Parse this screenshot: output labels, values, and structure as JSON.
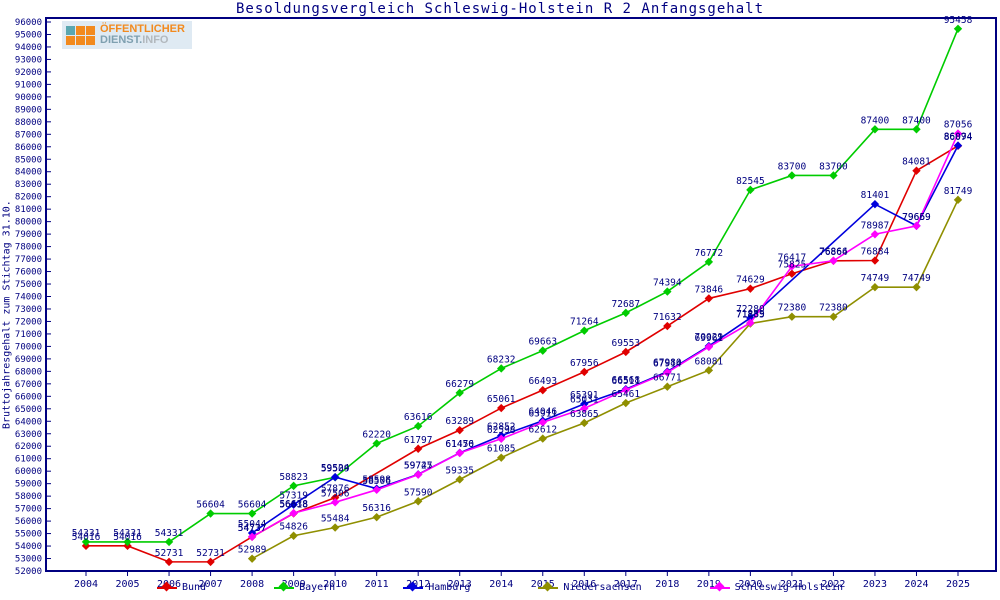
{
  "title": "Besoldungsvergleich Schleswig-Holstein R 2 Anfangsgehalt",
  "y_axis_title": "Bruttojahresgehalt zum Stichtag 31.10.",
  "logo": {
    "line1": "ÖFFENTLICHER",
    "line2_strong": "DIENST.",
    "line2_rest": "INFO",
    "square_colors": [
      "#5aa7b0",
      "#f28a1e",
      "#f28a1e",
      "#f28a1e",
      "#f28a1e",
      "#f28a1e"
    ]
  },
  "axis_color": "#000080",
  "label_color": "#000080",
  "chart_data": {
    "type": "line",
    "title": "Besoldungsvergleich Schleswig-Holstein R 2 Anfangsgehalt",
    "ylabel": "Bruttojahresgehalt zum Stichtag 31.10.",
    "xlabel": "",
    "ylim": [
      52000,
      96000
    ],
    "ytick_step": 1000,
    "grid": false,
    "legend_position": "bottom",
    "point_labels": "every point shows its value",
    "x": [
      2004,
      2005,
      2006,
      2007,
      2008,
      2009,
      2010,
      2011,
      2012,
      2013,
      2014,
      2015,
      2016,
      2017,
      2018,
      2019,
      2020,
      2021,
      2022,
      2023,
      2024,
      2025
    ],
    "series": [
      {
        "name": "Bund",
        "color": "#e00000",
        "values": [
          54016,
          54016,
          52731,
          52731,
          54737,
          56618,
          57876,
          null,
          61797,
          63289,
          65061,
          66493,
          67956,
          69553,
          71632,
          73846,
          74629,
          75825,
          76864,
          76884,
          84081,
          86074
        ]
      },
      {
        "name": "Bayern",
        "color": "#00cc00",
        "values": [
          54331,
          54331,
          54331,
          56604,
          56604,
          58823,
          59509,
          62220,
          63616,
          66279,
          68232,
          69663,
          71264,
          72687,
          74394,
          76772,
          82545,
          83700,
          83700,
          87400,
          87400,
          95458
        ]
      },
      {
        "name": "Hamburg",
        "color": "#0000dd",
        "values": [
          null,
          null,
          null,
          null,
          55044,
          57319,
          59524,
          58598,
          59747,
          61470,
          62852,
          64046,
          65391,
          66568,
          67980,
          70029,
          72280,
          null,
          null,
          81401,
          79669,
          86094
        ]
      },
      {
        "name": "Niedersachsen",
        "color": "#8f8f00",
        "values": [
          null,
          null,
          null,
          null,
          52989,
          54826,
          55484,
          56316,
          57590,
          59335,
          61085,
          62612,
          63865,
          65461,
          66771,
          68081,
          71835,
          72380,
          72380,
          74749,
          74749,
          81749
        ]
      },
      {
        "name": "Schleswig-Holstein",
        "color": "#ff00ff",
        "values": [
          null,
          null,
          null,
          null,
          54737,
          56638,
          57506,
          58506,
          59725,
          61456,
          62598,
          63911,
          65031,
          66511,
          67914,
          69961,
          71889,
          76417,
          76866,
          78987,
          79659,
          87056
        ]
      }
    ]
  }
}
